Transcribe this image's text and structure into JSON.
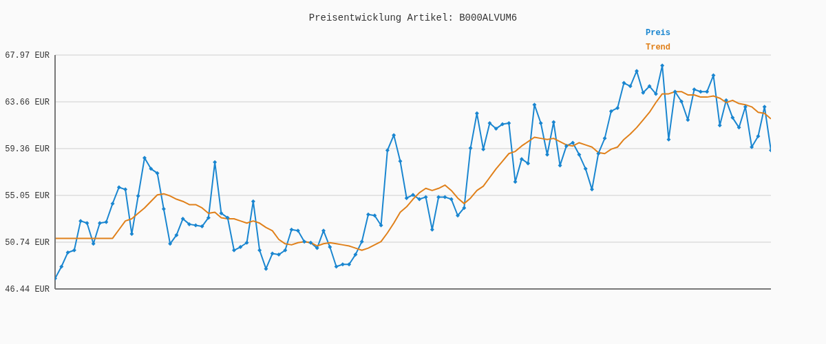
{
  "chart_data": {
    "type": "line",
    "title": "Preisentwicklung Artikel: B000ALVUM6",
    "categories": [
      null,
      null,
      null,
      null,
      null,
      null,
      null,
      null,
      null,
      null,
      null,
      null,
      null,
      null,
      null,
      null,
      null,
      null,
      null,
      null,
      null,
      null,
      null,
      null,
      null,
      null,
      null,
      null,
      null,
      null,
      null,
      null,
      null,
      null,
      null,
      null,
      null,
      null,
      null,
      null,
      null,
      null,
      null,
      null,
      null,
      null,
      null,
      null,
      null,
      null,
      null,
      null,
      null,
      null,
      null,
      null,
      null,
      null,
      null,
      null,
      null,
      null,
      null,
      null,
      null,
      null,
      null,
      null,
      null,
      null,
      null,
      null,
      null,
      null,
      null,
      null,
      null,
      null,
      null,
      null,
      null,
      null,
      null,
      null,
      null,
      null,
      null,
      null,
      null,
      null,
      null,
      null,
      null,
      null,
      null,
      null,
      null,
      null,
      null,
      null,
      null,
      null,
      null,
      null,
      null,
      null,
      null,
      null,
      null,
      null,
      null,
      null,
      null
    ],
    "series": [
      {
        "name": "Preis",
        "color": "#1a86d0",
        "marker": "diamond",
        "values": [
          47.4,
          48.5,
          49.8,
          50.0,
          52.7,
          52.5,
          50.6,
          52.5,
          52.6,
          54.3,
          55.8,
          55.6,
          51.5,
          55.0,
          58.5,
          57.5,
          57.1,
          53.8,
          50.6,
          51.4,
          52.9,
          52.4,
          52.3,
          52.2,
          53.0,
          58.1,
          53.4,
          53.0,
          50.0,
          50.3,
          50.7,
          54.5,
          50.0,
          48.3,
          49.7,
          49.6,
          50.0,
          51.9,
          51.8,
          50.8,
          50.7,
          50.2,
          51.8,
          50.3,
          48.5,
          48.7,
          48.7,
          49.6,
          50.8,
          53.3,
          53.2,
          52.3,
          59.2,
          60.6,
          58.2,
          54.8,
          55.1,
          54.7,
          54.9,
          51.9,
          54.9,
          54.9,
          54.7,
          53.2,
          53.9,
          59.4,
          62.6,
          59.3,
          61.7,
          61.2,
          61.6,
          61.7,
          56.3,
          58.4,
          58.0,
          63.4,
          61.7,
          58.8,
          61.8,
          57.8,
          59.6,
          59.9,
          58.8,
          57.5,
          55.6,
          58.9,
          60.3,
          62.8,
          63.1,
          65.4,
          65.1,
          66.5,
          64.5,
          65.1,
          64.4,
          67.0,
          60.2,
          64.6,
          63.7,
          62.0,
          64.8,
          64.6,
          64.6,
          66.1,
          61.5,
          63.8,
          62.2,
          61.3,
          63.2,
          59.5,
          60.5,
          63.2,
          59.2
        ]
      },
      {
        "name": "Trend",
        "color": "#e0801a",
        "marker": "none",
        "values": [
          51.1,
          51.1,
          51.1,
          51.1,
          51.1,
          51.1,
          51.1,
          51.1,
          51.1,
          51.1,
          51.9,
          52.7,
          52.9,
          53.4,
          53.9,
          54.5,
          55.1,
          55.2,
          55.0,
          54.7,
          54.5,
          54.2,
          54.2,
          53.9,
          53.4,
          53.5,
          53.0,
          52.9,
          52.9,
          52.7,
          52.5,
          52.7,
          52.5,
          52.1,
          51.8,
          51.0,
          50.6,
          50.5,
          50.7,
          50.8,
          50.7,
          50.4,
          50.6,
          50.7,
          50.6,
          50.5,
          50.4,
          50.2,
          50.0,
          50.2,
          50.5,
          50.8,
          51.6,
          52.5,
          53.5,
          54.0,
          54.7,
          55.3,
          55.7,
          55.5,
          55.7,
          56.0,
          55.5,
          54.8,
          54.3,
          54.8,
          55.5,
          55.9,
          56.7,
          57.5,
          58.2,
          58.9,
          59.1,
          59.6,
          60.0,
          60.4,
          60.3,
          60.2,
          60.3,
          60.0,
          59.7,
          59.6,
          59.9,
          59.7,
          59.5,
          59.0,
          58.9,
          59.3,
          59.5,
          60.2,
          60.7,
          61.3,
          62.0,
          62.7,
          63.6,
          64.4,
          64.4,
          64.6,
          64.6,
          64.3,
          64.3,
          64.1,
          64.1,
          64.2,
          64.0,
          63.6,
          63.8,
          63.5,
          63.4,
          63.2,
          62.7,
          62.6,
          62.1
        ]
      }
    ],
    "ylim": [
      46.44,
      67.97
    ],
    "yticks": [
      {
        "value": 46.44,
        "label": "46.44 EUR"
      },
      {
        "value": 50.74,
        "label": "50.74 EUR"
      },
      {
        "value": 55.05,
        "label": "55.05 EUR"
      },
      {
        "value": 59.36,
        "label": "59.36 EUR"
      },
      {
        "value": 63.66,
        "label": "63.66 EUR"
      },
      {
        "value": 67.97,
        "label": "67.97 EUR"
      }
    ],
    "grid": "y",
    "legend": "top right"
  }
}
